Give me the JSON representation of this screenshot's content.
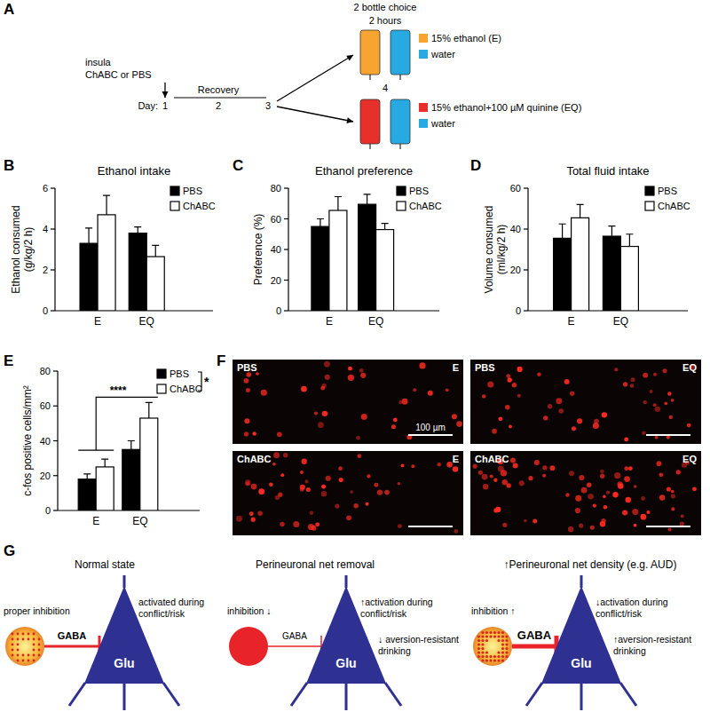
{
  "chart_data": [
    {
      "type": "bar",
      "panel": "B",
      "title": "Ethanol intake",
      "y_label": [
        "Ethanol consumed",
        "(g/kg/2 h)"
      ],
      "categories": [
        "E",
        "EQ"
      ],
      "series": [
        {
          "name": "PBS",
          "color": "#000000",
          "values": [
            3.3,
            3.8
          ],
          "errors": [
            0.75,
            0.3
          ]
        },
        {
          "name": "ChABC",
          "color": "#ffffff",
          "values": [
            4.7,
            2.65
          ],
          "errors": [
            0.95,
            0.55
          ]
        }
      ],
      "ylim": [
        0,
        6
      ],
      "yticks": [
        0,
        2,
        4,
        6
      ],
      "legend": "upper right"
    },
    {
      "type": "bar",
      "panel": "C",
      "title": "Ethanol preference",
      "y_label": [
        "Preference (%)"
      ],
      "categories": [
        "E",
        "EQ"
      ],
      "series": [
        {
          "name": "PBS",
          "color": "#000000",
          "values": [
            55,
            69.5
          ],
          "errors": [
            5,
            6.5
          ]
        },
        {
          "name": "ChABC",
          "color": "#ffffff",
          "values": [
            65.5,
            53
          ],
          "errors": [
            9,
            4
          ]
        }
      ],
      "ylim": [
        0,
        80
      ],
      "yticks": [
        0,
        20,
        40,
        60,
        80
      ],
      "legend": "upper right"
    },
    {
      "type": "bar",
      "panel": "D",
      "title": "Total fluid intake",
      "y_label": [
        "Volume consumed",
        "(ml/kg/2 h)"
      ],
      "categories": [
        "E",
        "EQ"
      ],
      "series": [
        {
          "name": "PBS",
          "color": "#000000",
          "values": [
            35.5,
            36.5
          ],
          "errors": [
            7,
            5
          ]
        },
        {
          "name": "ChABC",
          "color": "#ffffff",
          "values": [
            45.5,
            31.5
          ],
          "errors": [
            6.5,
            6
          ]
        }
      ],
      "ylim": [
        0,
        60
      ],
      "yticks": [
        0,
        20,
        40,
        60
      ],
      "legend": "upper right"
    },
    {
      "type": "bar",
      "panel": "E",
      "y_label": [
        "c-fos positive cells/mm²"
      ],
      "categories": [
        "E",
        "EQ"
      ],
      "series": [
        {
          "name": "PBS",
          "color": "#000000",
          "values": [
            18,
            35
          ],
          "errors": [
            3,
            5
          ]
        },
        {
          "name": "ChABC",
          "color": "#ffffff",
          "values": [
            25,
            53
          ],
          "errors": [
            4.5,
            9
          ]
        }
      ],
      "ylim": [
        0,
        80
      ],
      "yticks": [
        0,
        20,
        40,
        60,
        80
      ],
      "legend": "upper right",
      "annotations": {
        "categories": "****",
        "series": "*"
      }
    }
  ],
  "diagram_a": {
    "panel": "A",
    "injection": [
      "insula",
      "ChABC or PBS"
    ],
    "day_label": "Day:",
    "days": [
      1,
      2,
      3,
      4
    ],
    "phase": "Recovery",
    "test": [
      "2 bottle choice",
      "2 hours"
    ],
    "options": [
      {
        "bottles": [
          {
            "label": "15% ethanol (E)",
            "color": "#f7a431"
          },
          {
            "label": "water",
            "color": "#27aae1"
          }
        ]
      },
      {
        "bottles": [
          {
            "label": "15% ethanol+100 µM quinine (EQ)",
            "color": "#e8302a"
          },
          {
            "label": "water",
            "color": "#27aae1"
          }
        ]
      }
    ]
  },
  "images_f": {
    "panel": "F",
    "scale_bar": "100 µm",
    "images": [
      {
        "group": "PBS",
        "condition": "E"
      },
      {
        "group": "PBS",
        "condition": "EQ"
      },
      {
        "group": "ChABC",
        "condition": "E"
      },
      {
        "group": "ChABC",
        "condition": "EQ"
      }
    ]
  },
  "diagram_g": {
    "panel": "G",
    "states": [
      {
        "title": "Normal state",
        "gaba": "GABA",
        "neuron": "Glu",
        "left_notes": [
          "proper inhibition"
        ],
        "right_notes": [
          [
            "activated during",
            "conflict/risk"
          ]
        ]
      },
      {
        "title": "Perineuronal net removal",
        "gaba": "GABA",
        "neuron": "Glu",
        "left_notes": [
          "inhibition ↓"
        ],
        "right_notes": [
          [
            "↑activation during",
            "conflict/risk"
          ],
          [
            "↓ aversion-resistant",
            "drinking"
          ]
        ]
      },
      {
        "title": "↑Perineuronal net density (e.g. AUD)",
        "gaba": "GABA",
        "neuron": "Glu",
        "left_notes": [
          "inhibition ↑"
        ],
        "right_notes": [
          [
            "↓activation during",
            "conflict/risk"
          ],
          [
            "↑aversion-resistant",
            "drinking"
          ]
        ]
      }
    ]
  }
}
